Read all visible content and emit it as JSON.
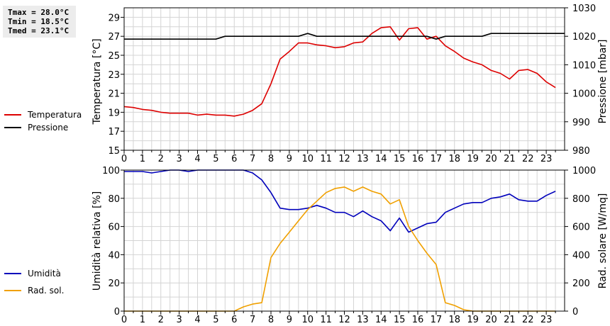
{
  "stats": {
    "tmax": "Tmax = 28.0°C",
    "tmin": "Tmin = 18.5°C",
    "tmed": "Tmed = 23.1°C"
  },
  "chart_data": [
    {
      "type": "line",
      "xlim": [
        0,
        24
      ],
      "x_ticks": [
        "0",
        "1",
        "2",
        "3",
        "4",
        "5",
        "6",
        "7",
        "8",
        "9",
        "10",
        "11",
        "12",
        "13",
        "14",
        "15",
        "16",
        "17",
        "18",
        "19",
        "20",
        "21",
        "22",
        "23"
      ],
      "ylabel": "Temperatura [°C]",
      "ylim": [
        15,
        30
      ],
      "y_ticks": [
        "15",
        "17",
        "19",
        "21",
        "23",
        "25",
        "27",
        "29"
      ],
      "y2label": "Pressione [mbar]",
      "y2lim": [
        980,
        1030
      ],
      "y2_ticks": [
        "980",
        "990",
        "1000",
        "1010",
        "1020",
        "1030"
      ],
      "grid": true,
      "series": [
        {
          "name": "Temperatura",
          "color": "#dd0000",
          "axis": "left",
          "x": [
            0,
            0.5,
            1,
            1.5,
            2,
            2.5,
            3,
            3.5,
            4,
            4.5,
            5,
            5.5,
            6,
            6.5,
            7,
            7.5,
            8,
            8.5,
            9,
            9.5,
            10,
            10.5,
            11,
            11.5,
            12,
            12.5,
            13,
            13.5,
            14,
            14.5,
            15,
            15.5,
            16,
            16.5,
            17,
            17.5,
            18,
            18.5,
            19,
            19.5,
            20,
            20.5,
            21,
            21.5,
            22,
            22.5,
            23,
            23.5
          ],
          "values": [
            19.6,
            19.5,
            19.3,
            19.2,
            19.0,
            18.9,
            18.9,
            18.9,
            18.7,
            18.8,
            18.7,
            18.7,
            18.6,
            18.8,
            19.2,
            19.9,
            22.0,
            24.6,
            25.4,
            26.3,
            26.3,
            26.1,
            26.0,
            25.8,
            25.9,
            26.3,
            26.4,
            27.3,
            27.9,
            28.0,
            26.6,
            27.8,
            27.9,
            26.7,
            27.0,
            26.0,
            25.4,
            24.7,
            24.3,
            24.0,
            23.4,
            23.1,
            22.5,
            23.4,
            23.5,
            23.1,
            22.2,
            21.6
          ]
        },
        {
          "name": "Pressione",
          "color": "#000000",
          "axis": "right",
          "x": [
            0,
            5,
            5.5,
            6,
            9.5,
            10,
            10.5,
            16.5,
            17,
            17.5,
            19.5,
            20,
            24
          ],
          "values": [
            1019,
            1019,
            1020,
            1020,
            1020,
            1021,
            1020,
            1020,
            1019,
            1020,
            1020,
            1021,
            1021
          ]
        }
      ]
    },
    {
      "type": "line",
      "xlim": [
        0,
        24
      ],
      "x_ticks": [
        "0",
        "1",
        "2",
        "3",
        "4",
        "5",
        "6",
        "7",
        "8",
        "9",
        "10",
        "11",
        "12",
        "13",
        "14",
        "15",
        "16",
        "17",
        "18",
        "19",
        "20",
        "21",
        "22",
        "23"
      ],
      "ylabel": "Umidità relativa [%]",
      "ylim": [
        0,
        100
      ],
      "y_ticks": [
        "0",
        "20",
        "40",
        "60",
        "80",
        "100"
      ],
      "y2label": "Rad. solare [W/mq]",
      "y2lim": [
        0,
        1000
      ],
      "y2_ticks": [
        "0",
        "200",
        "400",
        "600",
        "800",
        "1000"
      ],
      "grid": true,
      "series": [
        {
          "name": "Umidità",
          "color": "#0000bb",
          "axis": "left",
          "x": [
            0,
            0.5,
            1,
            1.5,
            2,
            2.5,
            3,
            3.5,
            4,
            4.5,
            5,
            5.5,
            6,
            6.5,
            7,
            7.5,
            8,
            8.5,
            9,
            9.5,
            10,
            10.5,
            11,
            11.5,
            12,
            12.5,
            13,
            13.5,
            14,
            14.5,
            15,
            15.5,
            16,
            16.5,
            17,
            17.5,
            18,
            18.5,
            19,
            19.5,
            20,
            20.5,
            21,
            21.5,
            22,
            22.5,
            23,
            23.5
          ],
          "values": [
            99,
            99,
            99,
            98,
            99,
            100,
            100,
            99,
            100,
            100,
            100,
            100,
            100,
            100,
            98,
            93,
            84,
            73,
            72,
            72,
            73,
            75,
            73,
            70,
            70,
            67,
            71,
            67,
            64,
            57,
            66,
            56,
            59,
            62,
            63,
            70,
            73,
            76,
            77,
            77,
            80,
            81,
            83,
            79,
            78,
            78,
            82,
            85
          ]
        },
        {
          "name": "Rad. sol.",
          "color": "#f0a000",
          "axis": "right",
          "x": [
            0,
            0.5,
            1,
            1.5,
            2,
            2.5,
            3,
            3.5,
            4,
            4.5,
            5,
            5.5,
            6,
            6.5,
            7,
            7.5,
            8,
            8.5,
            9,
            9.5,
            10,
            10.5,
            11,
            11.5,
            12,
            12.5,
            13,
            13.5,
            14,
            14.5,
            15,
            15.5,
            16,
            16.5,
            17,
            17.5,
            18,
            18.5,
            19,
            19.5,
            20,
            20.5,
            21,
            21.5,
            22,
            22.5,
            23,
            23.5
          ],
          "values": [
            0,
            0,
            0,
            0,
            0,
            0,
            0,
            0,
            0,
            0,
            0,
            0,
            0,
            30,
            50,
            60,
            380,
            480,
            560,
            640,
            720,
            780,
            840,
            870,
            880,
            850,
            880,
            850,
            830,
            760,
            790,
            600,
            500,
            410,
            330,
            60,
            40,
            10,
            0,
            0,
            0,
            0,
            0,
            0,
            0,
            0,
            0,
            0
          ]
        }
      ]
    }
  ]
}
